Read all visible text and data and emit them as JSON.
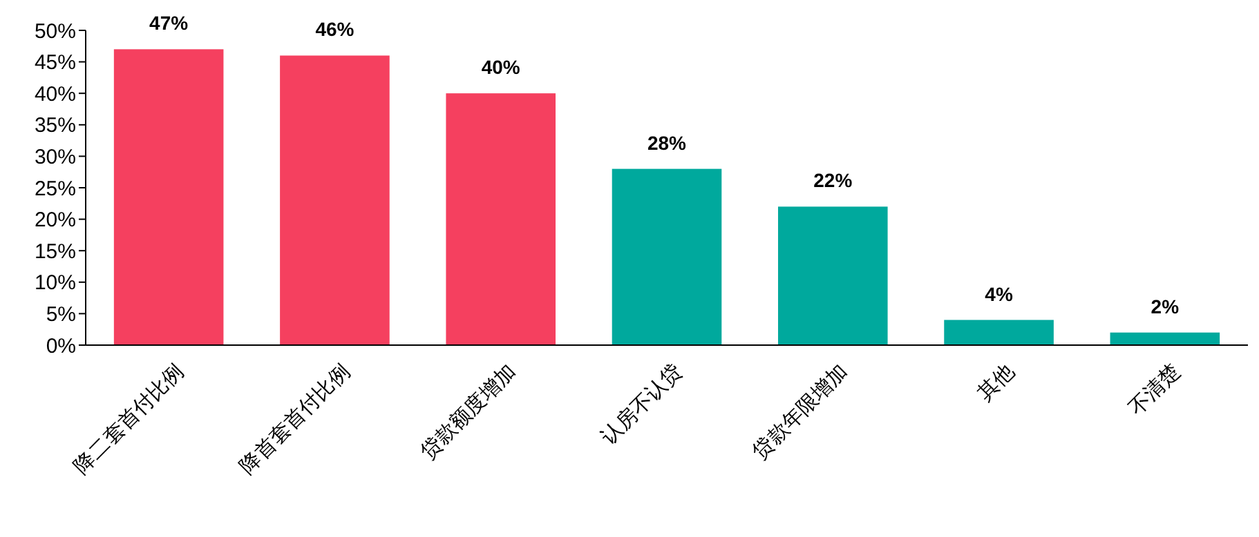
{
  "chart_data": {
    "type": "bar",
    "categories": [
      "降二套首付比例",
      "降首套首付比例",
      "贷款额度增加",
      "认房不认贷",
      "贷款年限增加",
      "其他",
      "不清楚"
    ],
    "values": [
      47,
      46,
      40,
      28,
      22,
      4,
      2
    ],
    "colors": [
      "#f5405f",
      "#f5405f",
      "#f5405f",
      "#00a99d",
      "#00a99d",
      "#00a99d",
      "#00a99d"
    ],
    "value_labels": [
      "47%",
      "46%",
      "40%",
      "28%",
      "22%",
      "4%",
      "2%"
    ],
    "ylim": [
      0,
      50
    ],
    "yticks": [
      {
        "value": 0,
        "label": "0%"
      },
      {
        "value": 5,
        "label": "5%"
      },
      {
        "value": 10,
        "label": "10%"
      },
      {
        "value": 15,
        "label": "15%"
      },
      {
        "value": 20,
        "label": "20%"
      },
      {
        "value": 25,
        "label": "25%"
      },
      {
        "value": 30,
        "label": "30%"
      },
      {
        "value": 35,
        "label": "35%"
      },
      {
        "value": 40,
        "label": "40%"
      },
      {
        "value": 45,
        "label": "45%"
      },
      {
        "value": 50,
        "label": "50%"
      }
    ],
    "grid": false
  }
}
